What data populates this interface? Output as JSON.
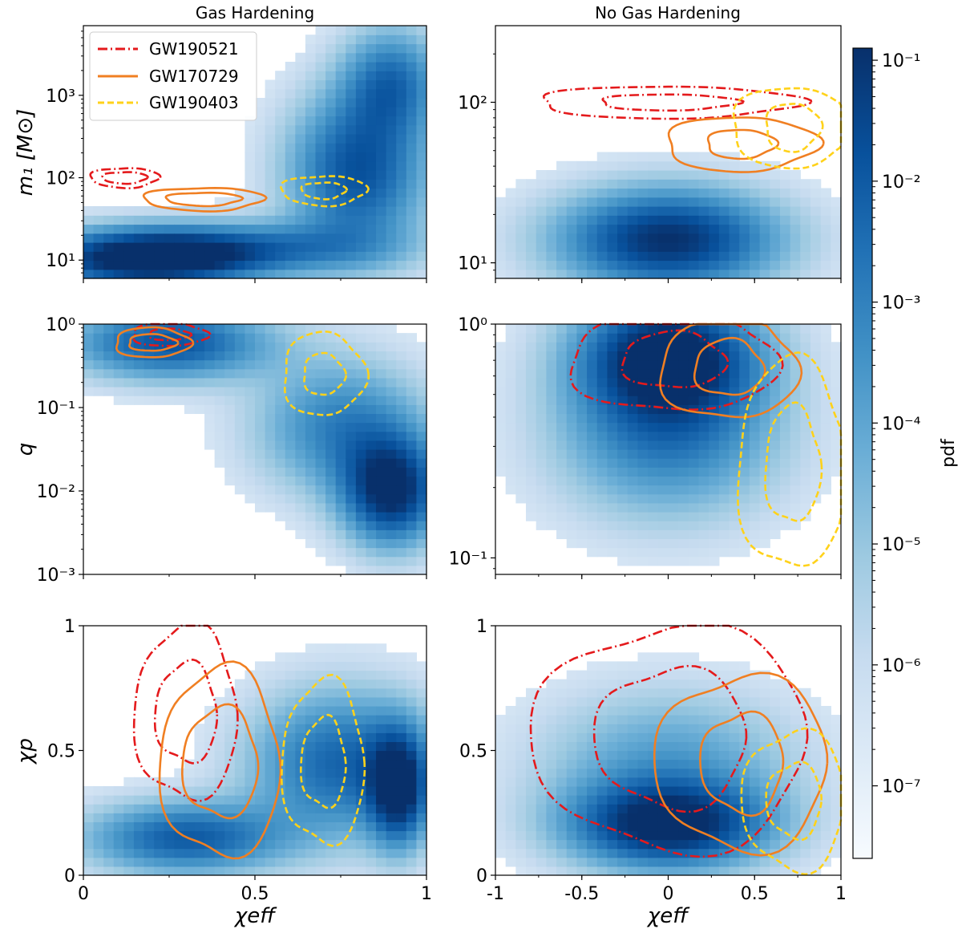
{
  "figure": {
    "col_titles": [
      "Gas Hardening",
      "No Gas Hardening"
    ],
    "colorbar": {
      "label": "pdf",
      "tick_labels": [
        "10⁻¹",
        "10⁻²",
        "10⁻³",
        "10⁻⁴",
        "10⁻⁵",
        "10⁻⁶",
        "10⁻⁷"
      ],
      "range_log10": [
        -7.6,
        -0.9
      ],
      "colormap": [
        "#f7fbff",
        "#deebf7",
        "#c6dbef",
        "#9ecae1",
        "#6baed6",
        "#4292c6",
        "#2171b5",
        "#08519c",
        "#08306b"
      ]
    },
    "legend": [
      {
        "name": "GW190521",
        "color": "#e41a1c",
        "style": "dashdot"
      },
      {
        "name": "GW170729",
        "color": "#f07f22",
        "style": "solid"
      },
      {
        "name": "GW190403",
        "color": "#ffd21a",
        "style": "dashed"
      }
    ],
    "xlabel": "χeff",
    "ylabels": {
      "m1": "m₁ [M⊙]",
      "q": "q",
      "chip": "χp"
    }
  },
  "chart_data": [
    {
      "id": "gas-m1",
      "type": "heatmap",
      "title": "Gas Hardening",
      "xlim": [
        0,
        1
      ],
      "ylim": [
        6,
        7000
      ],
      "yscale": "log",
      "x_ticks": [
        0,
        0.5,
        1
      ],
      "x_tick_labels": [],
      "y_ticks": [
        10,
        100,
        1000
      ],
      "y_tick_labels": [
        "10¹",
        "10²",
        "10³"
      ],
      "blobs": [
        {
          "x": 0.18,
          "y": 10,
          "sx": 0.22,
          "sy": 0.25,
          "amp": 1.0
        },
        {
          "x": 0.45,
          "y": 14,
          "sx": 0.3,
          "sy": 0.22,
          "amp": 0.55
        },
        {
          "x": 0.8,
          "y": 120,
          "sx": 0.14,
          "sy": 0.65,
          "amp": 0.8
        },
        {
          "x": 0.9,
          "y": 1500,
          "sx": 0.1,
          "sy": 0.45,
          "amp": 0.6
        }
      ],
      "contours": [
        {
          "event": "GW190521",
          "x": 0.12,
          "y": 100,
          "rx": [
            0.2,
            0.13
          ],
          "ry": [
            0.12,
            0.07
          ]
        },
        {
          "event": "GW170729",
          "x": 0.35,
          "y": 55,
          "rx": [
            0.35,
            0.22
          ],
          "ry": [
            0.14,
            0.08
          ]
        },
        {
          "event": "GW190403",
          "x": 0.7,
          "y": 70,
          "rx": [
            0.25,
            0.13
          ],
          "ry": [
            0.18,
            0.1
          ]
        }
      ]
    },
    {
      "id": "nogas-m1",
      "type": "heatmap",
      "title": "No Gas Hardening",
      "xlim": [
        -1,
        1
      ],
      "ylim": [
        8,
        300
      ],
      "yscale": "log",
      "x_ticks": [
        -1,
        -0.5,
        0,
        0.5,
        1
      ],
      "x_tick_labels": [],
      "y_ticks": [
        10,
        100
      ],
      "y_tick_labels": [
        "10¹",
        "10²"
      ],
      "blobs": [
        {
          "x": 0.0,
          "y": 14,
          "sx": 0.22,
          "sy": 0.22,
          "amp": 1.0
        }
      ],
      "contours": [
        {
          "event": "GW190521",
          "x": 0.0,
          "y": 100,
          "rx": [
            0.38,
            0.2
          ],
          "ry": [
            0.1,
            0.05
          ]
        },
        {
          "event": "GW170729",
          "x": 0.42,
          "y": 55,
          "rx": [
            0.22,
            0.1
          ],
          "ry": [
            0.17,
            0.09
          ]
        },
        {
          "event": "GW190403",
          "x": 0.72,
          "y": 70,
          "rx": [
            0.18,
            0.08
          ],
          "ry": [
            0.25,
            0.15
          ]
        }
      ]
    },
    {
      "id": "gas-q",
      "type": "heatmap",
      "xlim": [
        0,
        1
      ],
      "ylim": [
        0.001,
        1
      ],
      "yscale": "log",
      "x_ticks": [
        0,
        0.5,
        1
      ],
      "x_tick_labels": [],
      "y_ticks": [
        0.001,
        0.01,
        0.1,
        1
      ],
      "y_tick_labels": [
        "10⁻³",
        "10⁻²",
        "10⁻¹",
        "10⁰"
      ],
      "blobs": [
        {
          "x": 0.25,
          "y": 0.6,
          "sx": 0.2,
          "sy": 0.3,
          "amp": 0.8
        },
        {
          "x": 0.9,
          "y": 0.01,
          "sx": 0.1,
          "sy": 0.45,
          "amp": 1.0
        },
        {
          "x": 0.75,
          "y": 0.06,
          "sx": 0.17,
          "sy": 0.55,
          "amp": 0.55
        }
      ],
      "contours": [
        {
          "event": "GW190521",
          "x": 0.25,
          "y": 0.75,
          "rx": [
            0.22,
            0.12
          ],
          "ry": [
            0.14,
            0.07
          ]
        },
        {
          "event": "GW170729",
          "x": 0.2,
          "y": 0.6,
          "rx": [
            0.22,
            0.14
          ],
          "ry": [
            0.18,
            0.1
          ]
        },
        {
          "event": "GW190403",
          "x": 0.7,
          "y": 0.25,
          "rx": [
            0.24,
            0.12
          ],
          "ry": [
            0.5,
            0.25
          ]
        }
      ]
    },
    {
      "id": "nogas-q",
      "type": "heatmap",
      "xlim": [
        -1,
        1
      ],
      "ylim": [
        0.085,
        1
      ],
      "yscale": "log",
      "x_ticks": [
        -1,
        -0.5,
        0,
        0.5,
        1
      ],
      "x_tick_labels": [],
      "y_ticks": [
        0.1,
        1
      ],
      "y_tick_labels": [
        "10⁻¹",
        "10⁰"
      ],
      "blobs": [
        {
          "x": 0.0,
          "y": 0.75,
          "sx": 0.18,
          "sy": 0.18,
          "amp": 1.0
        },
        {
          "x": 0.0,
          "y": 0.35,
          "sx": 0.22,
          "sy": 0.25,
          "amp": 0.6
        }
      ],
      "contours": [
        {
          "event": "GW190521",
          "x": 0.03,
          "y": 0.7,
          "rx": [
            0.3,
            0.15
          ],
          "ry": [
            0.22,
            0.12
          ]
        },
        {
          "event": "GW170729",
          "x": 0.35,
          "y": 0.65,
          "rx": [
            0.2,
            0.1
          ],
          "ry": [
            0.22,
            0.12
          ]
        },
        {
          "event": "GW190403",
          "x": 0.72,
          "y": 0.25,
          "rx": [
            0.16,
            0.08
          ],
          "ry": [
            0.45,
            0.25
          ]
        }
      ]
    },
    {
      "id": "gas-chip",
      "type": "heatmap",
      "xlim": [
        0,
        1
      ],
      "ylim": [
        0,
        1
      ],
      "yscale": "linear",
      "x_ticks": [
        0,
        0.5,
        1
      ],
      "x_tick_labels": [
        "0",
        "0.5",
        "1"
      ],
      "y_ticks": [
        0,
        0.5,
        1
      ],
      "y_tick_labels": [
        "0",
        "0.5",
        "1"
      ],
      "blobs": [
        {
          "x": 0.3,
          "y": 0.15,
          "sx": 0.2,
          "sy": 0.1,
          "amp": 0.75
        },
        {
          "x": 0.75,
          "y": 0.45,
          "sx": 0.18,
          "sy": 0.2,
          "amp": 0.7
        },
        {
          "x": 0.92,
          "y": 0.35,
          "sx": 0.06,
          "sy": 0.16,
          "amp": 0.9
        }
      ],
      "contours": [
        {
          "event": "GW190521",
          "x": 0.3,
          "y": 0.65,
          "rx": [
            0.3,
            0.18
          ],
          "ry": [
            0.35,
            0.2
          ]
        },
        {
          "event": "GW170729",
          "x": 0.4,
          "y": 0.45,
          "rx": [
            0.35,
            0.22
          ],
          "ry": [
            0.38,
            0.22
          ]
        },
        {
          "event": "GW190403",
          "x": 0.7,
          "y": 0.45,
          "rx": [
            0.24,
            0.13
          ],
          "ry": [
            0.33,
            0.18
          ]
        }
      ]
    },
    {
      "id": "nogas-chip",
      "type": "heatmap",
      "xlim": [
        -1,
        1
      ],
      "ylim": [
        0,
        1
      ],
      "yscale": "linear",
      "x_ticks": [
        -1,
        -0.5,
        0,
        0.5,
        1
      ],
      "x_tick_labels": [
        "-1",
        "-0.5",
        "0",
        "0.5",
        "1"
      ],
      "y_ticks": [
        0,
        0.5,
        1
      ],
      "y_tick_labels": [
        "0",
        "0.5",
        "1"
      ],
      "blobs": [
        {
          "x": 0.0,
          "y": 0.2,
          "sx": 0.2,
          "sy": 0.12,
          "amp": 1.0
        },
        {
          "x": 0.0,
          "y": 0.45,
          "sx": 0.25,
          "sy": 0.2,
          "amp": 0.4
        }
      ],
      "contours": [
        {
          "event": "GW190521",
          "x": 0.02,
          "y": 0.55,
          "rx": [
            0.4,
            0.22
          ],
          "ry": [
            0.45,
            0.28
          ]
        },
        {
          "event": "GW170729",
          "x": 0.43,
          "y": 0.45,
          "rx": [
            0.25,
            0.12
          ],
          "ry": [
            0.35,
            0.2
          ]
        },
        {
          "event": "GW190403",
          "x": 0.73,
          "y": 0.3,
          "rx": [
            0.15,
            0.08
          ],
          "ry": [
            0.28,
            0.15
          ]
        }
      ]
    }
  ]
}
